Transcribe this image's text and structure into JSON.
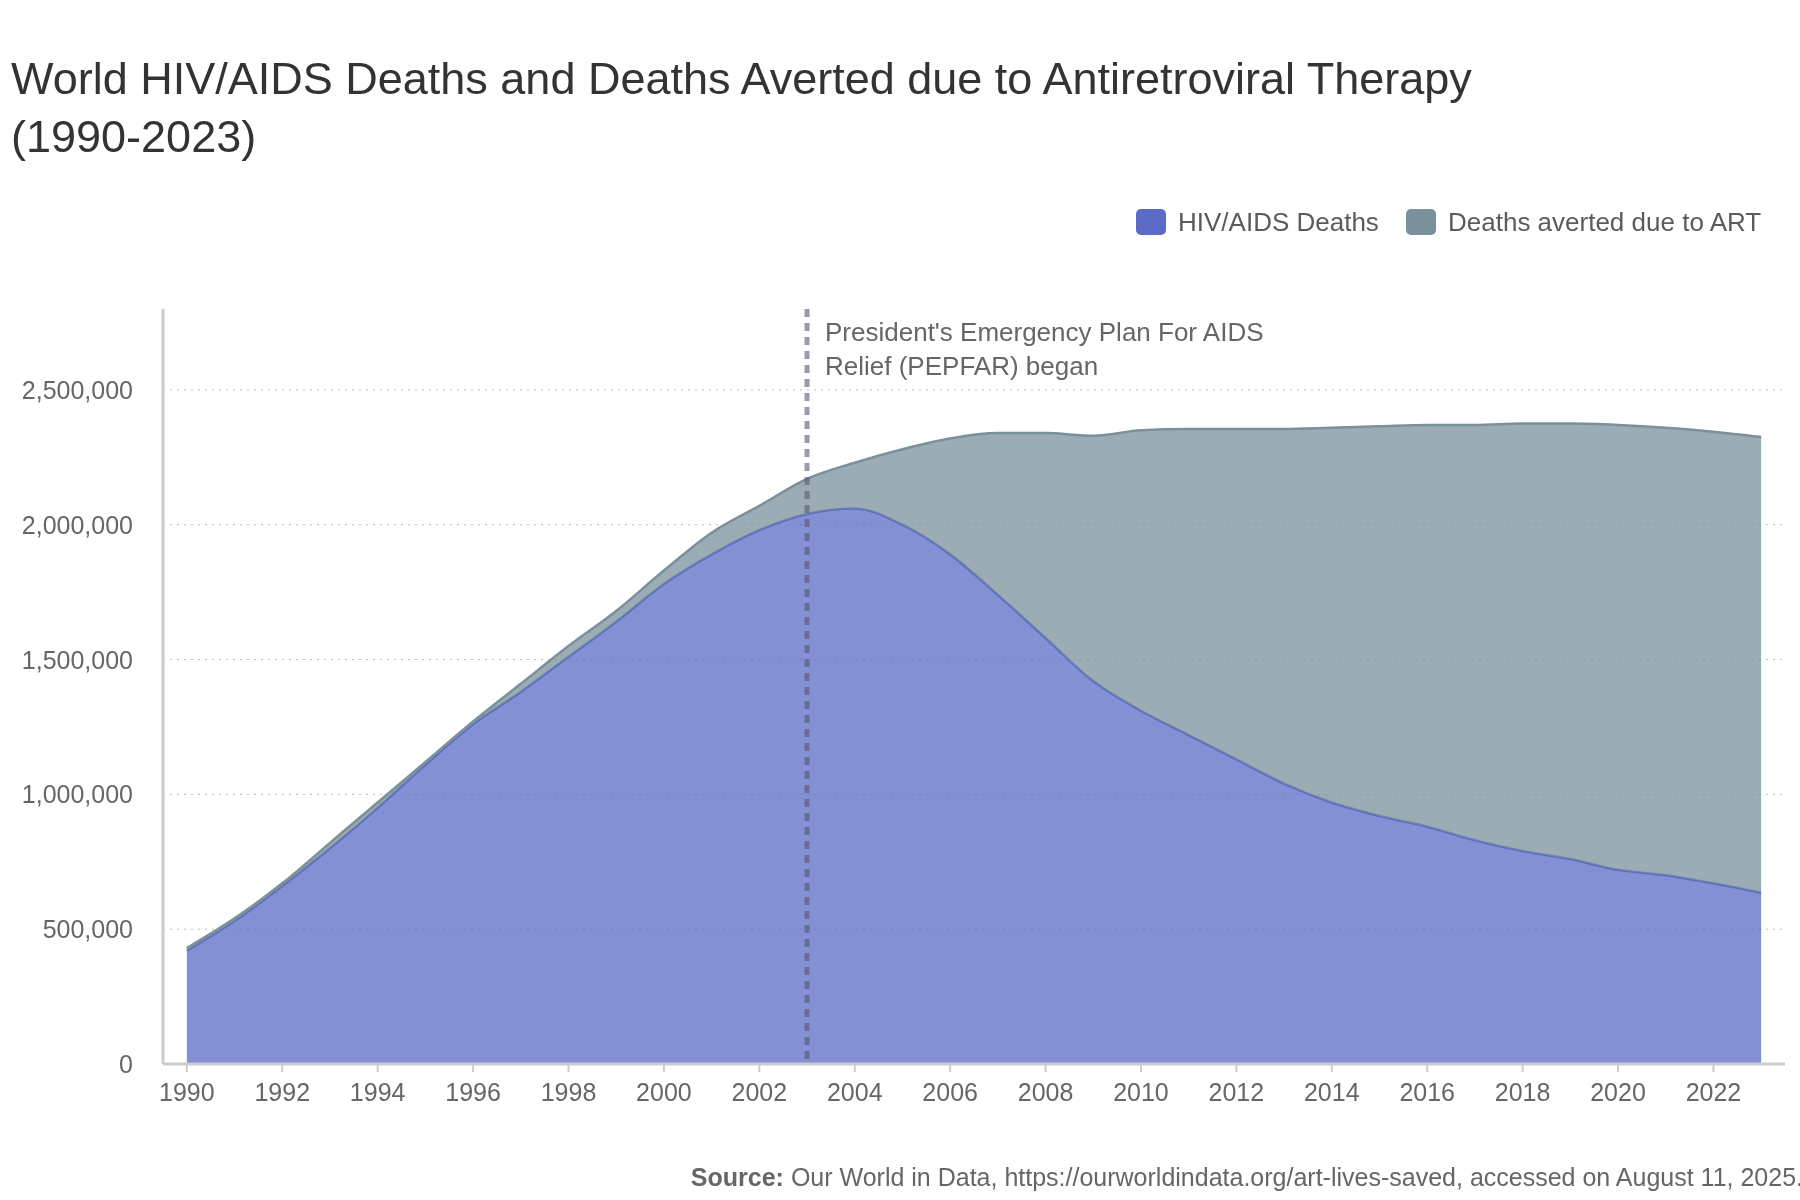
{
  "chart_data": {
    "type": "area",
    "stacked": true,
    "title": "World HIV/AIDS Deaths and Deaths Averted due to Antiretroviral Therapy (1990-2023)",
    "x": [
      1990,
      1991,
      1992,
      1993,
      1994,
      1995,
      1996,
      1997,
      1998,
      1999,
      2000,
      2001,
      2002,
      2003,
      2004,
      2005,
      2006,
      2007,
      2008,
      2009,
      2010,
      2011,
      2012,
      2013,
      2014,
      2015,
      2016,
      2017,
      2018,
      2019,
      2020,
      2021,
      2022,
      2023
    ],
    "series": [
      {
        "name": "HIV/AIDS Deaths",
        "color": "#5b6bc6",
        "values": [
          420000,
          530000,
          660000,
          800000,
          950000,
          1110000,
          1260000,
          1380000,
          1510000,
          1640000,
          1780000,
          1890000,
          1980000,
          2040000,
          2060000,
          2000000,
          1890000,
          1740000,
          1580000,
          1420000,
          1310000,
          1220000,
          1130000,
          1040000,
          970000,
          920000,
          880000,
          830000,
          790000,
          760000,
          720000,
          700000,
          670000,
          635000
        ]
      },
      {
        "name": "Deaths averted due to ART",
        "color": "#7a909b",
        "values": [
          10000,
          10000,
          10000,
          20000,
          20000,
          10000,
          10000,
          30000,
          40000,
          40000,
          50000,
          80000,
          90000,
          130000,
          170000,
          280000,
          430000,
          600000,
          760000,
          910000,
          1040000,
          1135000,
          1225000,
          1315000,
          1390000,
          1445000,
          1490000,
          1540000,
          1585000,
          1615000,
          1650000,
          1660000,
          1675000,
          1690000
        ]
      }
    ],
    "xlim": [
      1989.5,
      2023.5
    ],
    "xticks": [
      1990,
      1992,
      1994,
      1996,
      1998,
      2000,
      2002,
      2004,
      2006,
      2008,
      2010,
      2012,
      2014,
      2016,
      2018,
      2020,
      2022
    ],
    "ylim": [
      0,
      2800000
    ],
    "yticks": [
      {
        "value": 0,
        "label": "0"
      },
      {
        "value": 500000,
        "label": "500,000"
      },
      {
        "value": 1000000,
        "label": "1,000,000"
      },
      {
        "value": 1500000,
        "label": "1,500,000"
      },
      {
        "value": 2000000,
        "label": "2,000,000"
      },
      {
        "value": 2500000,
        "label": "2,500,000"
      }
    ],
    "grid": "y",
    "legend": "top right",
    "ref_lines": [
      {
        "axis": "x",
        "value": 2003,
        "label": "President's Emergency Plan For AIDS Relief (PEPFAR) began",
        "line_style": "dashed",
        "color": "#555a6e"
      }
    ],
    "annotations": [
      "Source: Our World in Data, https://ourworldindata.org/art-lives-saved, accessed on August 11, 2025."
    ]
  }
}
